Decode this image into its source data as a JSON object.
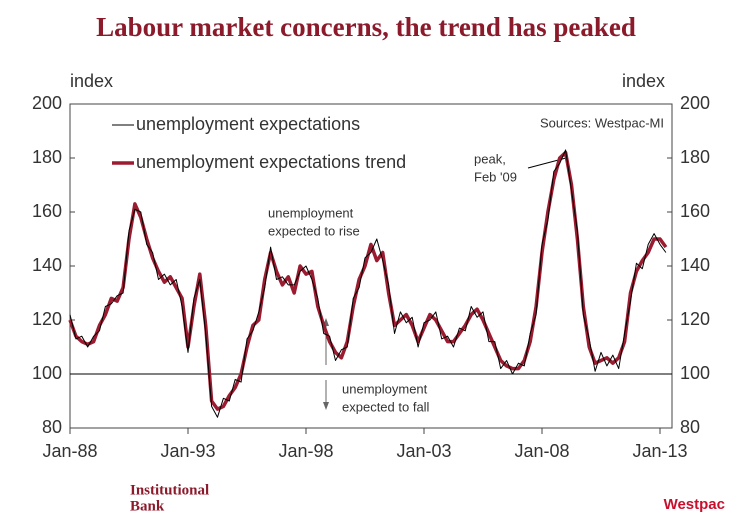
{
  "chart_data": {
    "type": "line",
    "title": "Labour market concerns, the trend has peaked",
    "ylabel": "index",
    "y2label": "index",
    "source": "Sources: Westpac-MI",
    "annotations": [
      "peak,",
      "Feb '09",
      "unemployment",
      "expected to rise",
      "unemployment",
      "expected to fall"
    ],
    "footer_left": [
      "Institutional",
      "Bank"
    ],
    "footer_right": "Westpac",
    "x": [
      "Jan-88",
      "Apr-88",
      "Jul-88",
      "Oct-88",
      "Jan-89",
      "Apr-89",
      "Jul-89",
      "Oct-89",
      "Jan-90",
      "Apr-90",
      "Jul-90",
      "Oct-90",
      "Jan-91",
      "Apr-91",
      "Jul-91",
      "Oct-91",
      "Jan-92",
      "Apr-92",
      "Jul-92",
      "Oct-92",
      "Jan-93",
      "Apr-93",
      "Jul-93",
      "Oct-93",
      "Jan-94",
      "Apr-94",
      "Jul-94",
      "Oct-94",
      "Jan-95",
      "Apr-95",
      "Jul-95",
      "Oct-95",
      "Jan-96",
      "Apr-96",
      "Jul-96",
      "Oct-96",
      "Jan-97",
      "Apr-97",
      "Jul-97",
      "Oct-97",
      "Jan-98",
      "Apr-98",
      "Jul-98",
      "Oct-98",
      "Jan-99",
      "Apr-99",
      "Jul-99",
      "Oct-99",
      "Jan-00",
      "Apr-00",
      "Jul-00",
      "Oct-00",
      "Jan-01",
      "Apr-01",
      "Jul-01",
      "Oct-01",
      "Jan-02",
      "Apr-02",
      "Jul-02",
      "Oct-02",
      "Jan-03",
      "Apr-03",
      "Jul-03",
      "Oct-03",
      "Jan-04",
      "Apr-04",
      "Jul-04",
      "Oct-04",
      "Jan-05",
      "Apr-05",
      "Jul-05",
      "Oct-05",
      "Jan-06",
      "Apr-06",
      "Jul-06",
      "Oct-06",
      "Jan-07",
      "Apr-07",
      "Jul-07",
      "Oct-07",
      "Jan-08",
      "Apr-08",
      "Jul-08",
      "Oct-08",
      "Jan-09",
      "Apr-09",
      "Jul-09",
      "Oct-09",
      "Jan-10",
      "Apr-10",
      "Jul-10",
      "Oct-10",
      "Jan-11",
      "Apr-11",
      "Jul-11",
      "Oct-11",
      "Jan-12",
      "Apr-12",
      "Jul-12",
      "Oct-12",
      "Jan-13",
      "Apr-13"
    ],
    "xticks": [
      "Jan-88",
      "Jan-93",
      "Jan-98",
      "Jan-03",
      "Jan-08",
      "Jan-13"
    ],
    "series": [
      {
        "name": "unemployment expectations",
        "color": "#000000",
        "width": 1,
        "values": [
          122,
          113,
          114,
          110,
          114,
          116,
          125,
          126,
          129,
          130,
          153,
          161,
          160,
          148,
          145,
          135,
          137,
          133,
          135,
          125,
          108,
          128,
          135,
          115,
          88,
          84,
          91,
          90,
          98,
          97,
          113,
          116,
          123,
          132,
          147,
          135,
          136,
          133,
          133,
          138,
          140,
          135,
          128,
          115,
          114,
          105,
          109,
          110,
          128,
          132,
          143,
          145,
          150,
          142,
          133,
          115,
          123,
          119,
          121,
          110,
          119,
          120,
          123,
          113,
          114,
          110,
          117,
          116,
          125,
          121,
          123,
          112,
          112,
          102,
          105,
          100,
          104,
          103,
          115,
          122,
          148,
          157,
          175,
          178,
          183,
          168,
          153,
          122,
          113,
          101,
          108,
          103,
          107,
          102,
          115,
          127,
          141,
          139,
          148,
          152,
          148,
          145
        ]
      },
      {
        "name": "unemployment expectations trend",
        "color": "#9b1b30",
        "width": 3.5,
        "values": [
          120,
          114,
          112,
          111,
          112,
          118,
          122,
          128,
          127,
          132,
          150,
          163,
          158,
          150,
          143,
          138,
          134,
          136,
          132,
          128,
          110,
          125,
          137,
          118,
          90,
          87,
          88,
          92,
          95,
          100,
          110,
          118,
          120,
          135,
          145,
          138,
          133,
          136,
          130,
          140,
          137,
          138,
          125,
          118,
          112,
          108,
          106,
          112,
          125,
          135,
          140,
          148,
          142,
          145,
          130,
          118,
          120,
          122,
          118,
          112,
          117,
          122,
          120,
          116,
          112,
          112,
          115,
          118,
          122,
          124,
          120,
          115,
          110,
          105,
          103,
          102,
          102,
          105,
          112,
          125,
          145,
          160,
          172,
          180,
          182,
          170,
          150,
          125,
          110,
          104,
          105,
          106,
          104,
          106,
          112,
          130,
          138,
          142,
          145,
          150,
          150,
          147
        ]
      }
    ],
    "ylim": [
      80,
      200
    ],
    "yticks": [
      80,
      100,
      120,
      140,
      160,
      180,
      200
    ],
    "y2lim": [
      80,
      200
    ],
    "y2ticks": [
      80,
      100,
      120,
      140,
      160,
      180,
      200
    ],
    "reference_line": 100
  }
}
